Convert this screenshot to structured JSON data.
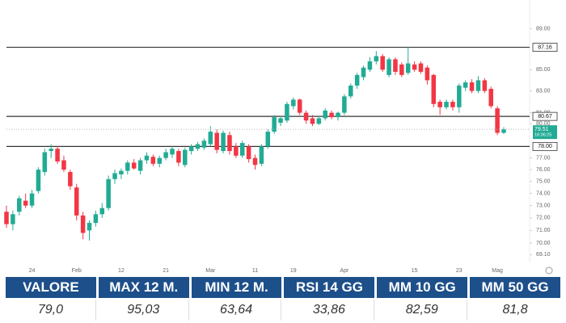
{
  "chart_data": {
    "type": "candlestick",
    "log_scale": true,
    "up_color": "#22ab94",
    "down_color": "#f23645",
    "ylim": [
      68.5,
      91.9
    ],
    "yticks": [
      {
        "value": 89,
        "label": "89.00"
      },
      {
        "value": 85,
        "label": "85.00"
      },
      {
        "value": 83,
        "label": "83.00"
      },
      {
        "value": 81,
        "label": "81.00"
      },
      {
        "value": 80,
        "label": "80.00"
      },
      {
        "value": 77,
        "label": "77.00"
      },
      {
        "value": 76,
        "label": "76.00"
      },
      {
        "value": 75,
        "label": "75.00"
      },
      {
        "value": 74,
        "label": "74.00"
      },
      {
        "value": 73,
        "label": "73.00"
      },
      {
        "value": 72,
        "label": "72.00"
      },
      {
        "value": 71,
        "label": "71.00"
      },
      {
        "value": 70,
        "label": "70.00"
      },
      {
        "value": 69.1,
        "label": "69.10"
      }
    ],
    "levels": [
      87.16,
      80.67,
      {
        "value": 78,
        "label": "78.00"
      }
    ],
    "countdown": "16:06:25",
    "categories": [
      null,
      null,
      null,
      null,
      "24",
      null,
      null,
      null,
      null,
      null,
      null,
      "Feb",
      null,
      null,
      null,
      null,
      null,
      null,
      "12",
      null,
      null,
      null,
      null,
      null,
      null,
      "21",
      null,
      null,
      null,
      null,
      null,
      null,
      "Mar",
      null,
      null,
      null,
      null,
      null,
      null,
      "11",
      null,
      null,
      null,
      null,
      null,
      "19",
      null,
      null,
      null,
      null,
      null,
      null,
      null,
      "Apr",
      null,
      null,
      null,
      null,
      null,
      null,
      null,
      null,
      null,
      null,
      "15",
      null,
      null,
      null,
      null,
      null,
      null,
      "23",
      null,
      null,
      null,
      null,
      null,
      "Mag",
      null
    ],
    "open": [
      72.5,
      71.5,
      72.5,
      73.4,
      73.0,
      74.2,
      75.8,
      77.6,
      77.8,
      76.8,
      75.8,
      74.5,
      72.2,
      71.0,
      71.6,
      72.3,
      72.8,
      75.2,
      75.6,
      75.9,
      76.6,
      75.9,
      76.8,
      77.1,
      76.5,
      77.0,
      77.3,
      77.6,
      76.4,
      77.6,
      77.8,
      77.9,
      78.2,
      79.2,
      77.6,
      79.0,
      78.0,
      77.2,
      78.0,
      77.0,
      76.5,
      78.0,
      79.3,
      80.1,
      80.3,
      81.6,
      82.2,
      81.0,
      80.5,
      80.0,
      80.5,
      81.0,
      80.6,
      81.0,
      82.5,
      83.5,
      84.3,
      85.0,
      85.8,
      86.3,
      84.5,
      86.0,
      85.5,
      84.7,
      85.5,
      85.6,
      85.2,
      84.5,
      82.0,
      81.5,
      82.0,
      81.5,
      83.3,
      83.8,
      83.0,
      84.0,
      83.2,
      81.4,
      79.2
    ],
    "high": [
      73.0,
      72.6,
      73.8,
      74.0,
      74.3,
      76.2,
      77.8,
      78.2,
      78.0,
      77.2,
      76.0,
      74.8,
      72.5,
      71.8,
      72.6,
      73.2,
      75.5,
      76.0,
      76.1,
      76.8,
      76.9,
      77.0,
      77.5,
      77.3,
      77.2,
      77.8,
      78.0,
      77.8,
      77.9,
      78.2,
      78.4,
      78.7,
      79.8,
      79.5,
      79.4,
      79.3,
      78.3,
      78.5,
      78.2,
      77.3,
      78.2,
      79.5,
      80.8,
      80.7,
      82.0,
      82.4,
      82.3,
      81.2,
      80.8,
      80.7,
      81.4,
      81.2,
      81.1,
      82.7,
      83.7,
      84.7,
      85.4,
      86.2,
      86.8,
      86.5,
      86.2,
      86.2,
      85.7,
      87.2,
      85.8,
      85.8,
      85.4,
      84.6,
      82.2,
      82.2,
      82.2,
      83.7,
      84.0,
      84.1,
      84.4,
      84.2,
      83.4,
      81.6,
      79.7
    ],
    "low": [
      71.2,
      71.0,
      72.2,
      72.8,
      72.8,
      74.0,
      75.5,
      77.0,
      76.5,
      75.8,
      74.3,
      71.8,
      70.3,
      70.2,
      71.3,
      72.0,
      72.6,
      74.8,
      75.2,
      75.6,
      76.0,
      75.6,
      76.5,
      76.3,
      76.2,
      76.8,
      77.0,
      76.3,
      76.2,
      77.3,
      77.6,
      77.7,
      78.0,
      77.4,
      77.4,
      77.3,
      77.0,
      77.0,
      76.6,
      76.0,
      76.3,
      77.8,
      79.1,
      79.8,
      80.1,
      81.3,
      80.8,
      80.0,
      79.8,
      79.9,
      80.3,
      80.4,
      80.3,
      80.8,
      82.3,
      83.2,
      84.0,
      84.8,
      85.5,
      84.8,
      84.3,
      84.5,
      84.3,
      84.5,
      84.8,
      84.6,
      83.6,
      81.5,
      80.8,
      81.3,
      81.2,
      81.0,
      83.0,
      82.8,
      82.8,
      82.8,
      81.4,
      79.0,
      79.1
    ],
    "close": [
      71.5,
      72.3,
      73.6,
      73.0,
      74.0,
      76.0,
      77.5,
      77.8,
      76.7,
      76.0,
      74.6,
      72.2,
      70.8,
      71.6,
      72.3,
      72.8,
      75.2,
      75.7,
      75.9,
      76.6,
      76.1,
      76.8,
      77.2,
      76.5,
      77.0,
      77.5,
      77.8,
      76.6,
      77.7,
      78.0,
      78.2,
      78.5,
      79.3,
      77.7,
      79.2,
      77.6,
      77.2,
      78.3,
      76.9,
      76.4,
      78.0,
      79.3,
      80.6,
      80.5,
      81.8,
      82.2,
      81.0,
      80.3,
      80.0,
      80.5,
      81.2,
      80.6,
      81.0,
      82.5,
      83.5,
      84.5,
      85.2,
      85.8,
      86.3,
      85.0,
      86.0,
      84.8,
      84.5,
      85.6,
      85.0,
      84.8,
      84.0,
      81.8,
      81.5,
      82.0,
      81.5,
      83.5,
      83.8,
      83.0,
      84.0,
      83.0,
      81.6,
      79.2,
      79.51
    ]
  },
  "table": {
    "header": [
      "VALORE",
      "MAX 12 M.",
      "MIN 12 M.",
      "RSI 14 GG",
      "MM 10 GG",
      "MM 50 GG"
    ],
    "rows": [
      [
        "79,0",
        "95,03",
        "63,64",
        "33,86",
        "82,59",
        "81,8"
      ]
    ]
  }
}
